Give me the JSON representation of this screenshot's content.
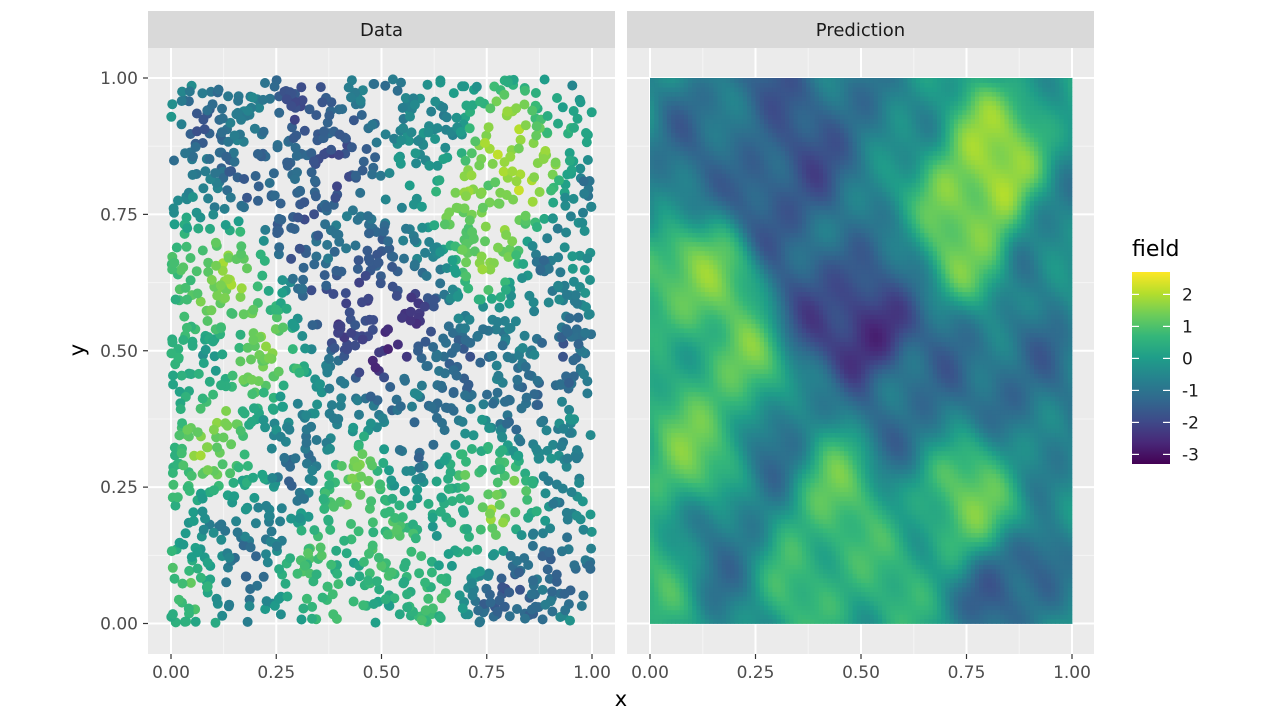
{
  "chart_data": {
    "type": "scatter",
    "facets": [
      {
        "label": "Data",
        "geom": "point"
      },
      {
        "label": "Prediction",
        "geom": "raster"
      }
    ],
    "xlabel": "x",
    "ylabel": "y",
    "xlim": [
      0,
      1
    ],
    "ylim": [
      0,
      1
    ],
    "xticks": [
      "0.00",
      "0.25",
      "0.50",
      "0.75",
      "1.00"
    ],
    "yticks": [
      "0.00",
      "0.25",
      "0.50",
      "0.75",
      "1.00"
    ],
    "grid": true,
    "theme": "ggplot2 grey",
    "legend": {
      "title": "field",
      "position": "right",
      "range": [
        -3.3,
        2.7
      ],
      "breaks": [
        2,
        1,
        0,
        -1,
        -2,
        -3
      ],
      "break_labels": [
        "2",
        "1",
        "0",
        "-1",
        "-2",
        "-3"
      ],
      "palette": "viridis",
      "colors": [
        "#440154",
        "#482878",
        "#3E4A89",
        "#31688E",
        "#26828E",
        "#1F9E89",
        "#35B779",
        "#6DCD59",
        "#B4DE2C",
        "#FDE725"
      ]
    },
    "field_features": [
      {
        "x": 0.52,
        "y": 0.55,
        "value": -3.1
      },
      {
        "x": 0.41,
        "y": 0.6,
        "value": -1.8
      },
      {
        "x": 0.33,
        "y": 0.82,
        "value": -1.9
      },
      {
        "x": 0.3,
        "y": 0.77,
        "value": -1.5
      },
      {
        "x": 0.26,
        "y": 0.98,
        "value": -1.4
      },
      {
        "x": 0.45,
        "y": 0.92,
        "value": -1.3
      },
      {
        "x": 0.12,
        "y": 0.88,
        "value": -1.0
      },
      {
        "x": 0.05,
        "y": 0.78,
        "value": -0.9
      },
      {
        "x": 0.77,
        "y": 0.77,
        "value": 2.5
      },
      {
        "x": 0.83,
        "y": 0.87,
        "value": 2.0
      },
      {
        "x": 0.73,
        "y": 0.7,
        "value": 1.6
      },
      {
        "x": 0.06,
        "y": 0.65,
        "value": 1.9
      },
      {
        "x": 0.15,
        "y": 0.63,
        "value": 1.4
      },
      {
        "x": 0.22,
        "y": 0.45,
        "value": 1.6
      },
      {
        "x": 0.08,
        "y": 0.3,
        "value": 1.5
      },
      {
        "x": 0.18,
        "y": 0.38,
        "value": 1.3
      },
      {
        "x": 0.82,
        "y": 0.23,
        "value": 1.8
      },
      {
        "x": 0.74,
        "y": 0.2,
        "value": 1.2
      },
      {
        "x": 0.43,
        "y": 0.25,
        "value": 1.3
      },
      {
        "x": 0.4,
        "y": 0.1,
        "value": 1.2
      },
      {
        "x": 0.55,
        "y": 0.08,
        "value": 0.8
      },
      {
        "x": 0.05,
        "y": 0.12,
        "value": 1.0
      },
      {
        "x": 0.6,
        "y": 0.4,
        "value": -1.2
      },
      {
        "x": 0.85,
        "y": 0.1,
        "value": -1.8
      },
      {
        "x": 0.88,
        "y": 0.45,
        "value": -1.3
      },
      {
        "x": 0.7,
        "y": 0.5,
        "value": -1.0
      },
      {
        "x": 0.3,
        "y": 0.35,
        "value": -1.4
      },
      {
        "x": 0.15,
        "y": 0.15,
        "value": -1.1
      },
      {
        "x": 0.95,
        "y": 0.7,
        "value": -0.6
      },
      {
        "x": 0.92,
        "y": 0.3,
        "value": -0.8
      },
      {
        "x": 0.6,
        "y": 0.65,
        "value": -0.7
      }
    ]
  }
}
